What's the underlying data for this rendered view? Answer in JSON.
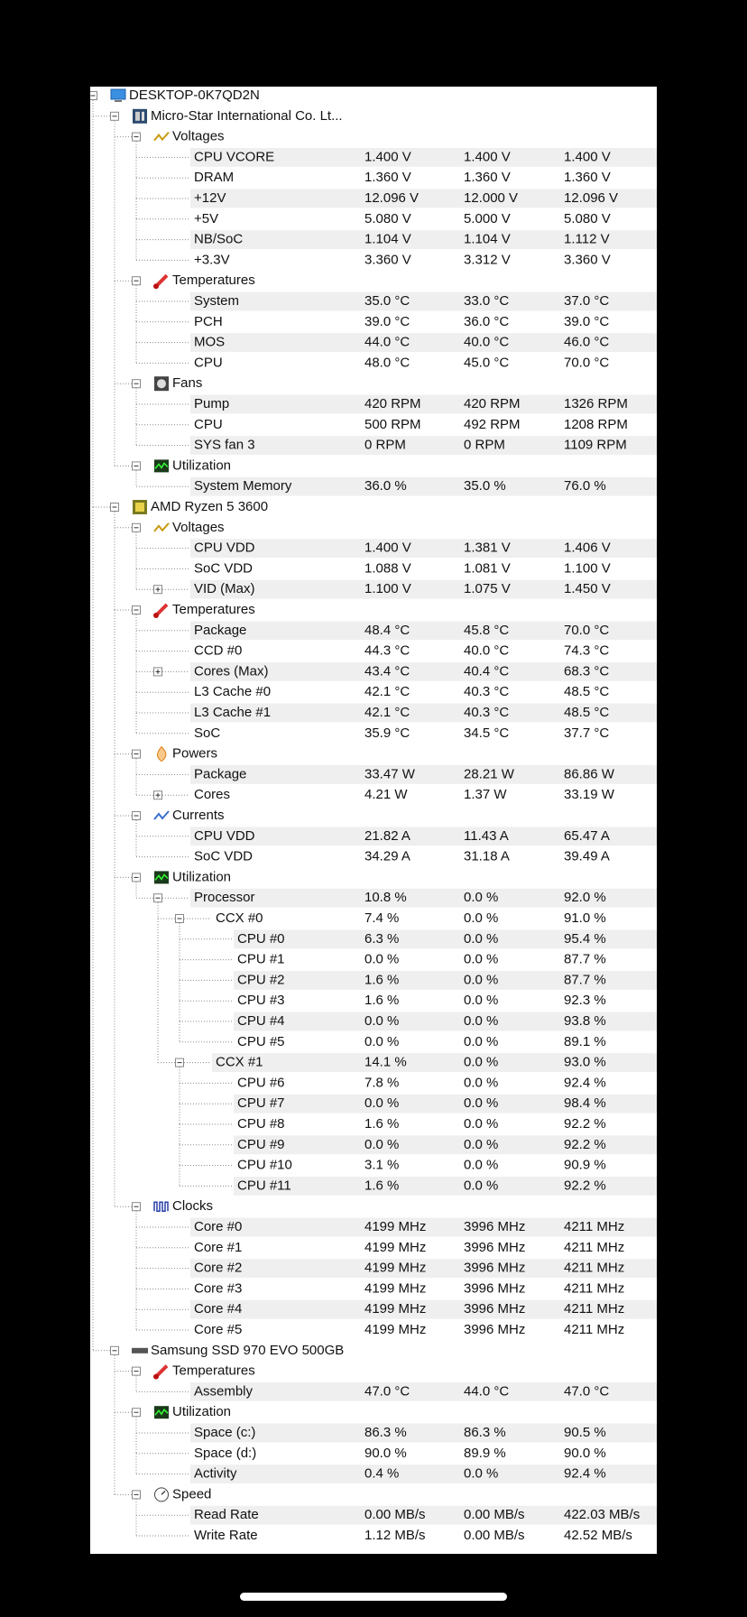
{
  "nodes": [
    {
      "label": "DESKTOP-0K7QD2N",
      "level": 0,
      "icon": "computer"
    },
    {
      "label": "Micro-Star International Co. Lt...",
      "level": 1,
      "icon": "board"
    },
    {
      "label": "Voltages",
      "level": 2,
      "icon": "voltage"
    },
    {
      "label": "CPU VCORE",
      "level": 3,
      "values": [
        "1.400 V",
        "1.400 V",
        "1.400 V"
      ]
    },
    {
      "label": "DRAM",
      "level": 3,
      "values": [
        "1.360 V",
        "1.360 V",
        "1.360 V"
      ]
    },
    {
      "label": "+12V",
      "level": 3,
      "values": [
        "12.096 V",
        "12.000 V",
        "12.096 V"
      ]
    },
    {
      "label": "+5V",
      "level": 3,
      "values": [
        "5.080 V",
        "5.000 V",
        "5.080 V"
      ]
    },
    {
      "label": "NB/SoC",
      "level": 3,
      "values": [
        "1.104 V",
        "1.104 V",
        "1.112 V"
      ]
    },
    {
      "label": "+3.3V",
      "level": 3,
      "values": [
        "3.360 V",
        "3.312 V",
        "3.360 V"
      ]
    },
    {
      "label": "Temperatures",
      "level": 2,
      "icon": "temperature"
    },
    {
      "label": "System",
      "level": 3,
      "values": [
        "35.0 °C",
        "33.0 °C",
        "37.0 °C"
      ]
    },
    {
      "label": "PCH",
      "level": 3,
      "values": [
        "39.0 °C",
        "36.0 °C",
        "39.0 °C"
      ]
    },
    {
      "label": "MOS",
      "level": 3,
      "values": [
        "44.0 °C",
        "40.0 °C",
        "46.0 °C"
      ]
    },
    {
      "label": "CPU",
      "level": 3,
      "values": [
        "48.0 °C",
        "45.0 °C",
        "70.0 °C"
      ]
    },
    {
      "label": "Fans",
      "level": 2,
      "icon": "fan"
    },
    {
      "label": "Pump",
      "level": 3,
      "values": [
        "420 RPM",
        "420 RPM",
        "1326 RPM"
      ]
    },
    {
      "label": "CPU",
      "level": 3,
      "values": [
        "500 RPM",
        "492 RPM",
        "1208 RPM"
      ]
    },
    {
      "label": "SYS fan 3",
      "level": 3,
      "values": [
        "0 RPM",
        "0 RPM",
        "1109 RPM"
      ]
    },
    {
      "label": "Utilization",
      "level": 2,
      "icon": "utilization"
    },
    {
      "label": "System Memory",
      "level": 3,
      "values": [
        "36.0 %",
        "35.0 %",
        "76.0 %"
      ]
    },
    {
      "label": "AMD Ryzen 5 3600",
      "level": 1,
      "icon": "cpu"
    },
    {
      "label": "Voltages",
      "level": 2,
      "icon": "voltage"
    },
    {
      "label": "CPU VDD",
      "level": 3,
      "values": [
        "1.400 V",
        "1.381 V",
        "1.406 V"
      ]
    },
    {
      "label": "SoC VDD",
      "level": 3,
      "values": [
        "1.088 V",
        "1.081 V",
        "1.100 V"
      ]
    },
    {
      "label": "VID (Max)",
      "level": 3,
      "collapsed": true,
      "values": [
        "1.100 V",
        "1.075 V",
        "1.450 V"
      ]
    },
    {
      "label": "Temperatures",
      "level": 2,
      "icon": "temperature"
    },
    {
      "label": "Package",
      "level": 3,
      "values": [
        "48.4 °C",
        "45.8 °C",
        "70.0 °C"
      ]
    },
    {
      "label": "CCD #0",
      "level": 3,
      "values": [
        "44.3 °C",
        "40.0 °C",
        "74.3 °C"
      ]
    },
    {
      "label": "Cores (Max)",
      "level": 3,
      "collapsed": true,
      "values": [
        "43.4 °C",
        "40.4 °C",
        "68.3 °C"
      ]
    },
    {
      "label": "L3 Cache #0",
      "level": 3,
      "values": [
        "42.1 °C",
        "40.3 °C",
        "48.5 °C"
      ]
    },
    {
      "label": "L3 Cache #1",
      "level": 3,
      "values": [
        "42.1 °C",
        "40.3 °C",
        "48.5 °C"
      ]
    },
    {
      "label": "SoC",
      "level": 3,
      "values": [
        "35.9 °C",
        "34.5 °C",
        "37.7 °C"
      ]
    },
    {
      "label": "Powers",
      "level": 2,
      "icon": "power"
    },
    {
      "label": "Package",
      "level": 3,
      "values": [
        "33.47 W",
        "28.21 W",
        "86.86 W"
      ]
    },
    {
      "label": "Cores",
      "level": 3,
      "collapsed": true,
      "values": [
        "4.21 W",
        "1.37 W",
        "33.19 W"
      ]
    },
    {
      "label": "Currents",
      "level": 2,
      "icon": "current"
    },
    {
      "label": "CPU VDD",
      "level": 3,
      "values": [
        "21.82 A",
        "11.43 A",
        "65.47 A"
      ]
    },
    {
      "label": "SoC VDD",
      "level": 3,
      "values": [
        "34.29 A",
        "31.18 A",
        "39.49 A"
      ]
    },
    {
      "label": "Utilization",
      "level": 2,
      "icon": "utilization"
    },
    {
      "label": "Processor",
      "level": 3,
      "values": [
        "10.8 %",
        "0.0 %",
        "92.0 %"
      ]
    },
    {
      "label": "CCX #0",
      "level": 4,
      "values": [
        "7.4 %",
        "0.0 %",
        "91.0 %"
      ]
    },
    {
      "label": "CPU #0",
      "level": 5,
      "values": [
        "6.3 %",
        "0.0 %",
        "95.4 %"
      ]
    },
    {
      "label": "CPU #1",
      "level": 5,
      "values": [
        "0.0 %",
        "0.0 %",
        "87.7 %"
      ]
    },
    {
      "label": "CPU #2",
      "level": 5,
      "values": [
        "1.6 %",
        "0.0 %",
        "87.7 %"
      ]
    },
    {
      "label": "CPU #3",
      "level": 5,
      "values": [
        "1.6 %",
        "0.0 %",
        "92.3 %"
      ]
    },
    {
      "label": "CPU #4",
      "level": 5,
      "values": [
        "0.0 %",
        "0.0 %",
        "93.8 %"
      ]
    },
    {
      "label": "CPU #5",
      "level": 5,
      "values": [
        "0.0 %",
        "0.0 %",
        "89.1 %"
      ]
    },
    {
      "label": "CCX #1",
      "level": 4,
      "values": [
        "14.1 %",
        "0.0 %",
        "93.0 %"
      ]
    },
    {
      "label": "CPU #6",
      "level": 5,
      "values": [
        "7.8 %",
        "0.0 %",
        "92.4 %"
      ]
    },
    {
      "label": "CPU #7",
      "level": 5,
      "values": [
        "0.0 %",
        "0.0 %",
        "98.4 %"
      ]
    },
    {
      "label": "CPU #8",
      "level": 5,
      "values": [
        "1.6 %",
        "0.0 %",
        "92.2 %"
      ]
    },
    {
      "label": "CPU #9",
      "level": 5,
      "values": [
        "0.0 %",
        "0.0 %",
        "92.2 %"
      ]
    },
    {
      "label": "CPU #10",
      "level": 5,
      "values": [
        "3.1 %",
        "0.0 %",
        "90.9 %"
      ]
    },
    {
      "label": "CPU #11",
      "level": 5,
      "values": [
        "1.6 %",
        "0.0 %",
        "92.2 %"
      ]
    },
    {
      "label": "Clocks",
      "level": 2,
      "icon": "clock"
    },
    {
      "label": "Core #0",
      "level": 3,
      "values": [
        "4199 MHz",
        "3996 MHz",
        "4211 MHz"
      ]
    },
    {
      "label": "Core #1",
      "level": 3,
      "values": [
        "4199 MHz",
        "3996 MHz",
        "4211 MHz"
      ]
    },
    {
      "label": "Core #2",
      "level": 3,
      "values": [
        "4199 MHz",
        "3996 MHz",
        "4211 MHz"
      ]
    },
    {
      "label": "Core #3",
      "level": 3,
      "values": [
        "4199 MHz",
        "3996 MHz",
        "4211 MHz"
      ]
    },
    {
      "label": "Core #4",
      "level": 3,
      "values": [
        "4199 MHz",
        "3996 MHz",
        "4211 MHz"
      ]
    },
    {
      "label": "Core #5",
      "level": 3,
      "values": [
        "4199 MHz",
        "3996 MHz",
        "4211 MHz"
      ]
    },
    {
      "label": "Samsung SSD 970 EVO 500GB",
      "level": 1,
      "icon": "ssd"
    },
    {
      "label": "Temperatures",
      "level": 2,
      "icon": "temperature"
    },
    {
      "label": "Assembly",
      "level": 3,
      "values": [
        "47.0 °C",
        "44.0 °C",
        "47.0 °C"
      ]
    },
    {
      "label": "Utilization",
      "level": 2,
      "icon": "utilization"
    },
    {
      "label": "Space (c:)",
      "level": 3,
      "values": [
        "86.3 %",
        "86.3 %",
        "90.5 %"
      ]
    },
    {
      "label": "Space (d:)",
      "level": 3,
      "values": [
        "90.0 %",
        "89.9 %",
        "90.0 %"
      ]
    },
    {
      "label": "Activity",
      "level": 3,
      "values": [
        "0.4 %",
        "0.0 %",
        "92.4 %"
      ]
    },
    {
      "label": "Speed",
      "level": 2,
      "icon": "speed"
    },
    {
      "label": "Read Rate",
      "level": 3,
      "values": [
        "0.00 MB/s",
        "0.00 MB/s",
        "422.03 MB/s"
      ]
    },
    {
      "label": "Write Rate",
      "level": 3,
      "values": [
        "1.12 MB/s",
        "0.00 MB/s",
        "42.52 MB/s"
      ]
    }
  ]
}
